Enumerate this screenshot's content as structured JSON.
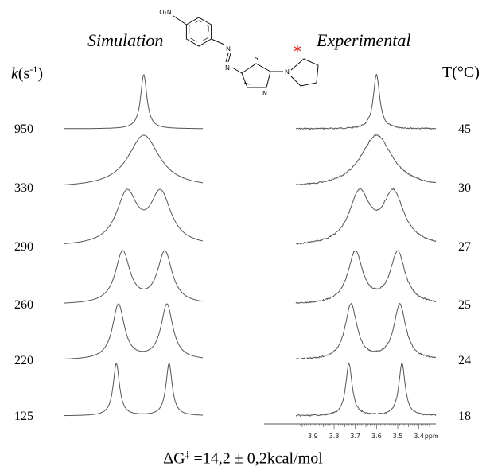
{
  "headings": {
    "simulation": "Simulation",
    "experimental": "Experimental",
    "left_axis_symbol": "k",
    "left_axis_unit_pre": "(s",
    "left_axis_unit_sup": "-1",
    "left_axis_unit_post": ")",
    "right_axis": "T(°C)"
  },
  "footer": {
    "prefix": "ΔG",
    "sup": "‡",
    "text": " =14,2 ± 0,2kcal/mol"
  },
  "molecule": {
    "no2_label": "O₂N",
    "n1": "N",
    "n2": "N",
    "s_label": "S",
    "ring_n": "N",
    "pyrrolidine_n": "N",
    "asterisk": "*",
    "asterisk_color": "#e02020"
  },
  "chart_data": {
    "type": "line",
    "title": "",
    "xlabel": "ppm",
    "x_ticks": [
      3.9,
      3.8,
      3.7,
      3.6,
      3.5,
      3.4
    ],
    "x_unit_label": "ppm",
    "xlim": [
      3.98,
      3.32
    ],
    "series_left_label": "Simulation",
    "series_right_label": "Experimental",
    "rows": [
      {
        "k": "950",
        "T": "45",
        "peaks": [
          3.6
        ],
        "widths": [
          0.018
        ]
      },
      {
        "k": "330",
        "T": "30",
        "peaks": [
          3.6
        ],
        "widths": [
          0.09
        ]
      },
      {
        "k": "290",
        "T": "27",
        "peaks": [
          3.68,
          3.52
        ],
        "widths": [
          0.06,
          0.06
        ]
      },
      {
        "k": "260",
        "T": "25",
        "peaks": [
          3.7,
          3.5
        ],
        "widths": [
          0.042,
          0.042
        ]
      },
      {
        "k": "220",
        "T": "24",
        "peaks": [
          3.72,
          3.49
        ],
        "widths": [
          0.034,
          0.034
        ]
      },
      {
        "k": "125",
        "T": "18",
        "peaks": [
          3.73,
          3.48
        ],
        "widths": [
          0.018,
          0.018
        ]
      }
    ],
    "line_color": "#555555"
  }
}
